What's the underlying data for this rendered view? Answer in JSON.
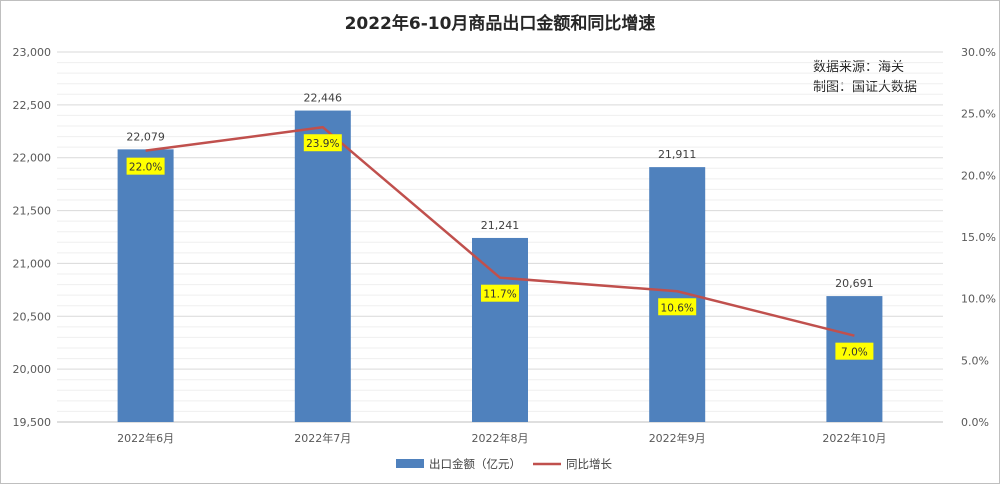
{
  "chart_data": {
    "type": "bar",
    "title": "2022年6-10月商品出口金额和同比增速",
    "categories": [
      "2022年6月",
      "2022年7月",
      "2022年8月",
      "2022年9月",
      "2022年10月"
    ],
    "series": [
      {
        "name": "出口金额（亿元）",
        "type": "bar",
        "axis": "left",
        "color": "#4f81bd",
        "values": [
          22079,
          22446,
          21241,
          21911,
          20691
        ],
        "labels": [
          "22,079",
          "22,446",
          "21,241",
          "21,911",
          "20,691"
        ]
      },
      {
        "name": "同比增长",
        "type": "line",
        "axis": "right",
        "color": "#c0504d",
        "values": [
          22.0,
          23.9,
          11.7,
          10.6,
          7.0
        ],
        "labels": [
          "22.0%",
          "23.9%",
          "11.7%",
          "10.6%",
          "7.0%"
        ]
      }
    ],
    "y_left": {
      "min": 19500,
      "max": 23000,
      "step": 500,
      "tick_labels": [
        "19,500",
        "20,000",
        "20,500",
        "21,000",
        "21,500",
        "22,000",
        "22,500",
        "23,000"
      ]
    },
    "y_right": {
      "min": 0,
      "max": 30,
      "step": 5,
      "tick_labels": [
        "0.0%",
        "5.0%",
        "10.0%",
        "15.0%",
        "20.0%",
        "25.0%",
        "30.0%"
      ]
    },
    "grid": true,
    "legend_position": "bottom",
    "annotations": [
      "数据来源：海关",
      "制图：国证大数据"
    ]
  }
}
